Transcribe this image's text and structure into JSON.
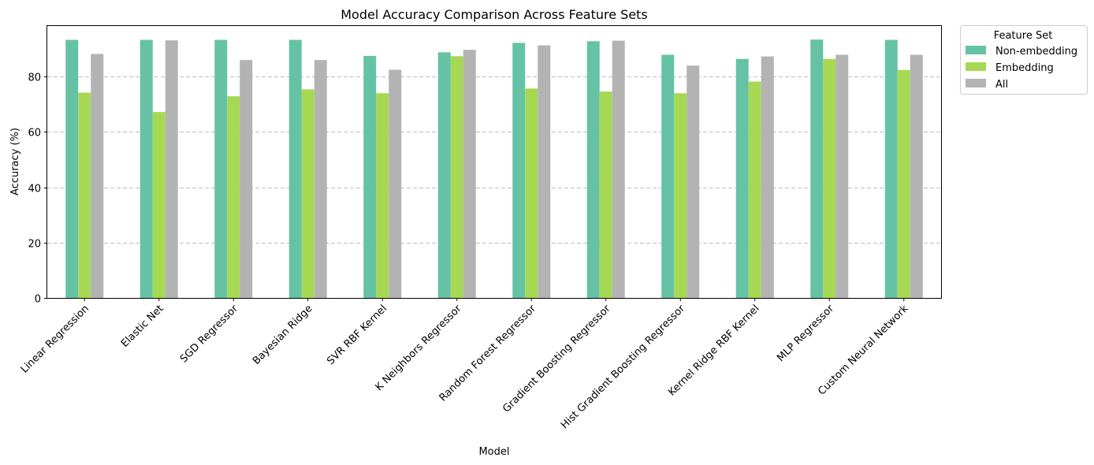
{
  "chart_data": {
    "type": "bar",
    "title": "Model Accuracy Comparison Across Feature Sets",
    "xlabel": "Model",
    "ylabel": "Accuracy (%)",
    "ylim": [
      0,
      98.3
    ],
    "yticks": [
      0,
      20,
      40,
      60,
      80
    ],
    "grid": "y-dashed",
    "legend": {
      "title": "Feature Set",
      "placement": "outside-top-right"
    },
    "categories": [
      "Linear Regression",
      "Elastic Net",
      "SGD Regressor",
      "Bayesian Ridge",
      "SVR RBF Kernel",
      "K Neighbors Regressor",
      "Random Forest Regressor",
      "Gradient Boosting Regressor",
      "Hist Gradient Boosting Regressor",
      "Kernel Ridge RBF Kernel",
      "MLP Regressor",
      "Custom Neural Network"
    ],
    "series": [
      {
        "name": "Non-embedding",
        "color": "#66c2a5",
        "values": [
          93.3,
          93.3,
          93.3,
          93.3,
          87.5,
          88.8,
          92.2,
          92.8,
          87.9,
          86.4,
          93.4,
          93.3
        ]
      },
      {
        "name": "Embedding",
        "color": "#a6d854",
        "values": [
          74.2,
          67.2,
          72.9,
          75.4,
          74.0,
          87.4,
          75.7,
          74.6,
          74.0,
          78.2,
          86.4,
          82.4
        ]
      },
      {
        "name": "All",
        "color": "#b3b3b3",
        "values": [
          88.2,
          93.1,
          86.0,
          86.0,
          82.5,
          89.7,
          91.3,
          93.0,
          84.0,
          87.3,
          87.9,
          87.9
        ]
      }
    ]
  }
}
